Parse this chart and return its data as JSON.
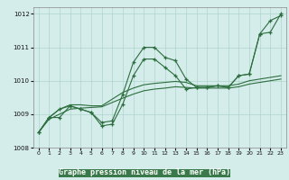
{
  "xlabel": "Graphe pression niveau de la mer (hPa)",
  "bg_color": "#d4ecea",
  "grid_color": "#a8cec8",
  "line_color": "#2d6e3e",
  "bottom_bar_color": "#3a7a4a",
  "x_hours": [
    0,
    1,
    2,
    3,
    4,
    5,
    6,
    7,
    8,
    9,
    10,
    11,
    12,
    13,
    14,
    15,
    16,
    17,
    18,
    19,
    20,
    21,
    22,
    23
  ],
  "series1_zigzag": [
    1008.45,
    1008.9,
    1008.9,
    1009.25,
    1009.15,
    1009.05,
    1008.75,
    1008.8,
    1009.6,
    1010.55,
    1011.0,
    1011.0,
    1010.7,
    1010.6,
    1010.05,
    1009.8,
    1009.8,
    1009.85,
    1009.8,
    1010.15,
    1010.2,
    1011.4,
    1011.8,
    1011.95
  ],
  "series2_zigzag": [
    1008.45,
    1008.9,
    1009.15,
    1009.25,
    1009.15,
    1009.05,
    1008.65,
    1008.7,
    1009.3,
    1010.15,
    1010.65,
    1010.65,
    1010.4,
    1010.15,
    1009.75,
    1009.8,
    1009.8,
    1009.85,
    1009.8,
    1010.15,
    1010.2,
    1011.4,
    1011.45,
    1012.0
  ],
  "series3_smooth": [
    1008.45,
    1008.9,
    1009.15,
    1009.28,
    1009.28,
    1009.25,
    1009.25,
    1009.45,
    1009.65,
    1009.78,
    1009.88,
    1009.92,
    1009.95,
    1009.98,
    1009.95,
    1009.85,
    1009.85,
    1009.85,
    1009.85,
    1009.9,
    1010.0,
    1010.05,
    1010.1,
    1010.15
  ],
  "series4_smooth": [
    1008.45,
    1008.85,
    1009.0,
    1009.15,
    1009.18,
    1009.2,
    1009.22,
    1009.35,
    1009.48,
    1009.6,
    1009.7,
    1009.75,
    1009.78,
    1009.82,
    1009.8,
    1009.78,
    1009.78,
    1009.78,
    1009.78,
    1009.82,
    1009.9,
    1009.95,
    1010.0,
    1010.05
  ],
  "ylim": [
    1008.0,
    1012.2
  ],
  "yticks": [
    1008,
    1009,
    1010,
    1011,
    1012
  ],
  "xticks": [
    0,
    1,
    2,
    3,
    4,
    5,
    6,
    7,
    8,
    9,
    10,
    11,
    12,
    13,
    14,
    15,
    16,
    17,
    18,
    19,
    20,
    21,
    22,
    23
  ]
}
